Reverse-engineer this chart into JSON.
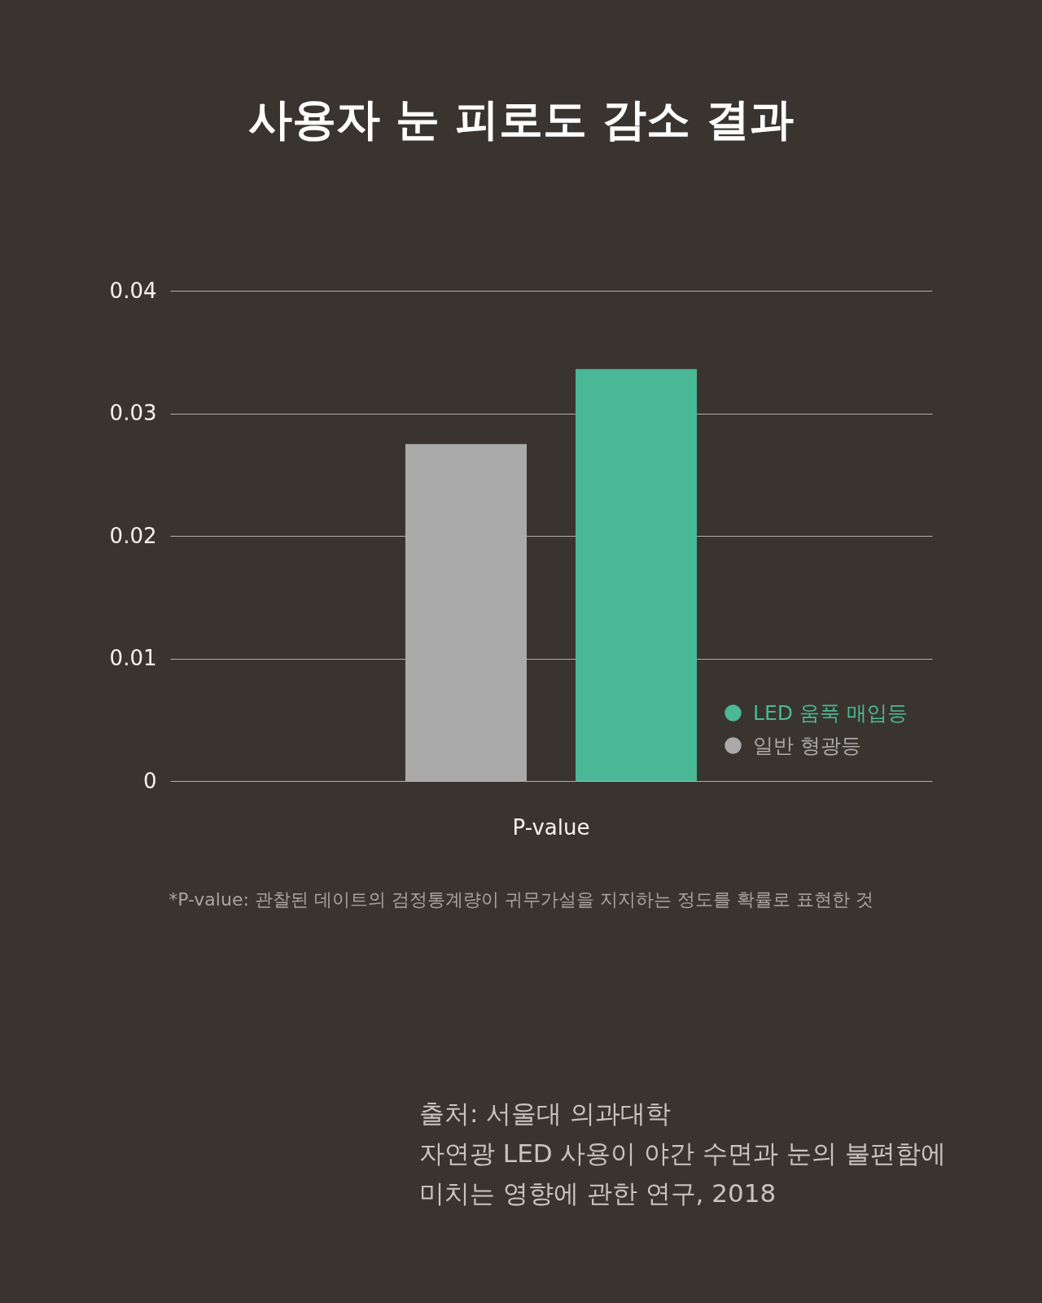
{
  "chart_data": {
    "type": "bar",
    "title": "사용자 눈 피로도 감소 결과",
    "categories": [
      "P-value"
    ],
    "series": [
      {
        "name": "일반 형광등",
        "color": "#aaaaaa",
        "values": [
          0.0275
        ]
      },
      {
        "name": "LED 움푹 매입등",
        "color": "#4ab896",
        "values": [
          0.0336
        ]
      }
    ],
    "ylim": [
      0,
      0.04
    ],
    "yticks": [
      0,
      0.01,
      0.02,
      0.03,
      0.04
    ],
    "grid": "y",
    "legend": "bottom right",
    "annotations": [
      "*P-value: 관찰된 데이트의 검정통계량이 귀무가설을 지지하는 정도를 확률로 표현한 것",
      "출처: 서울대 의과대학",
      "자연광 LED 사용이 야간 수면과 눈의 불편함에 미치는 영향에 관한 연구, 2018"
    ]
  }
}
